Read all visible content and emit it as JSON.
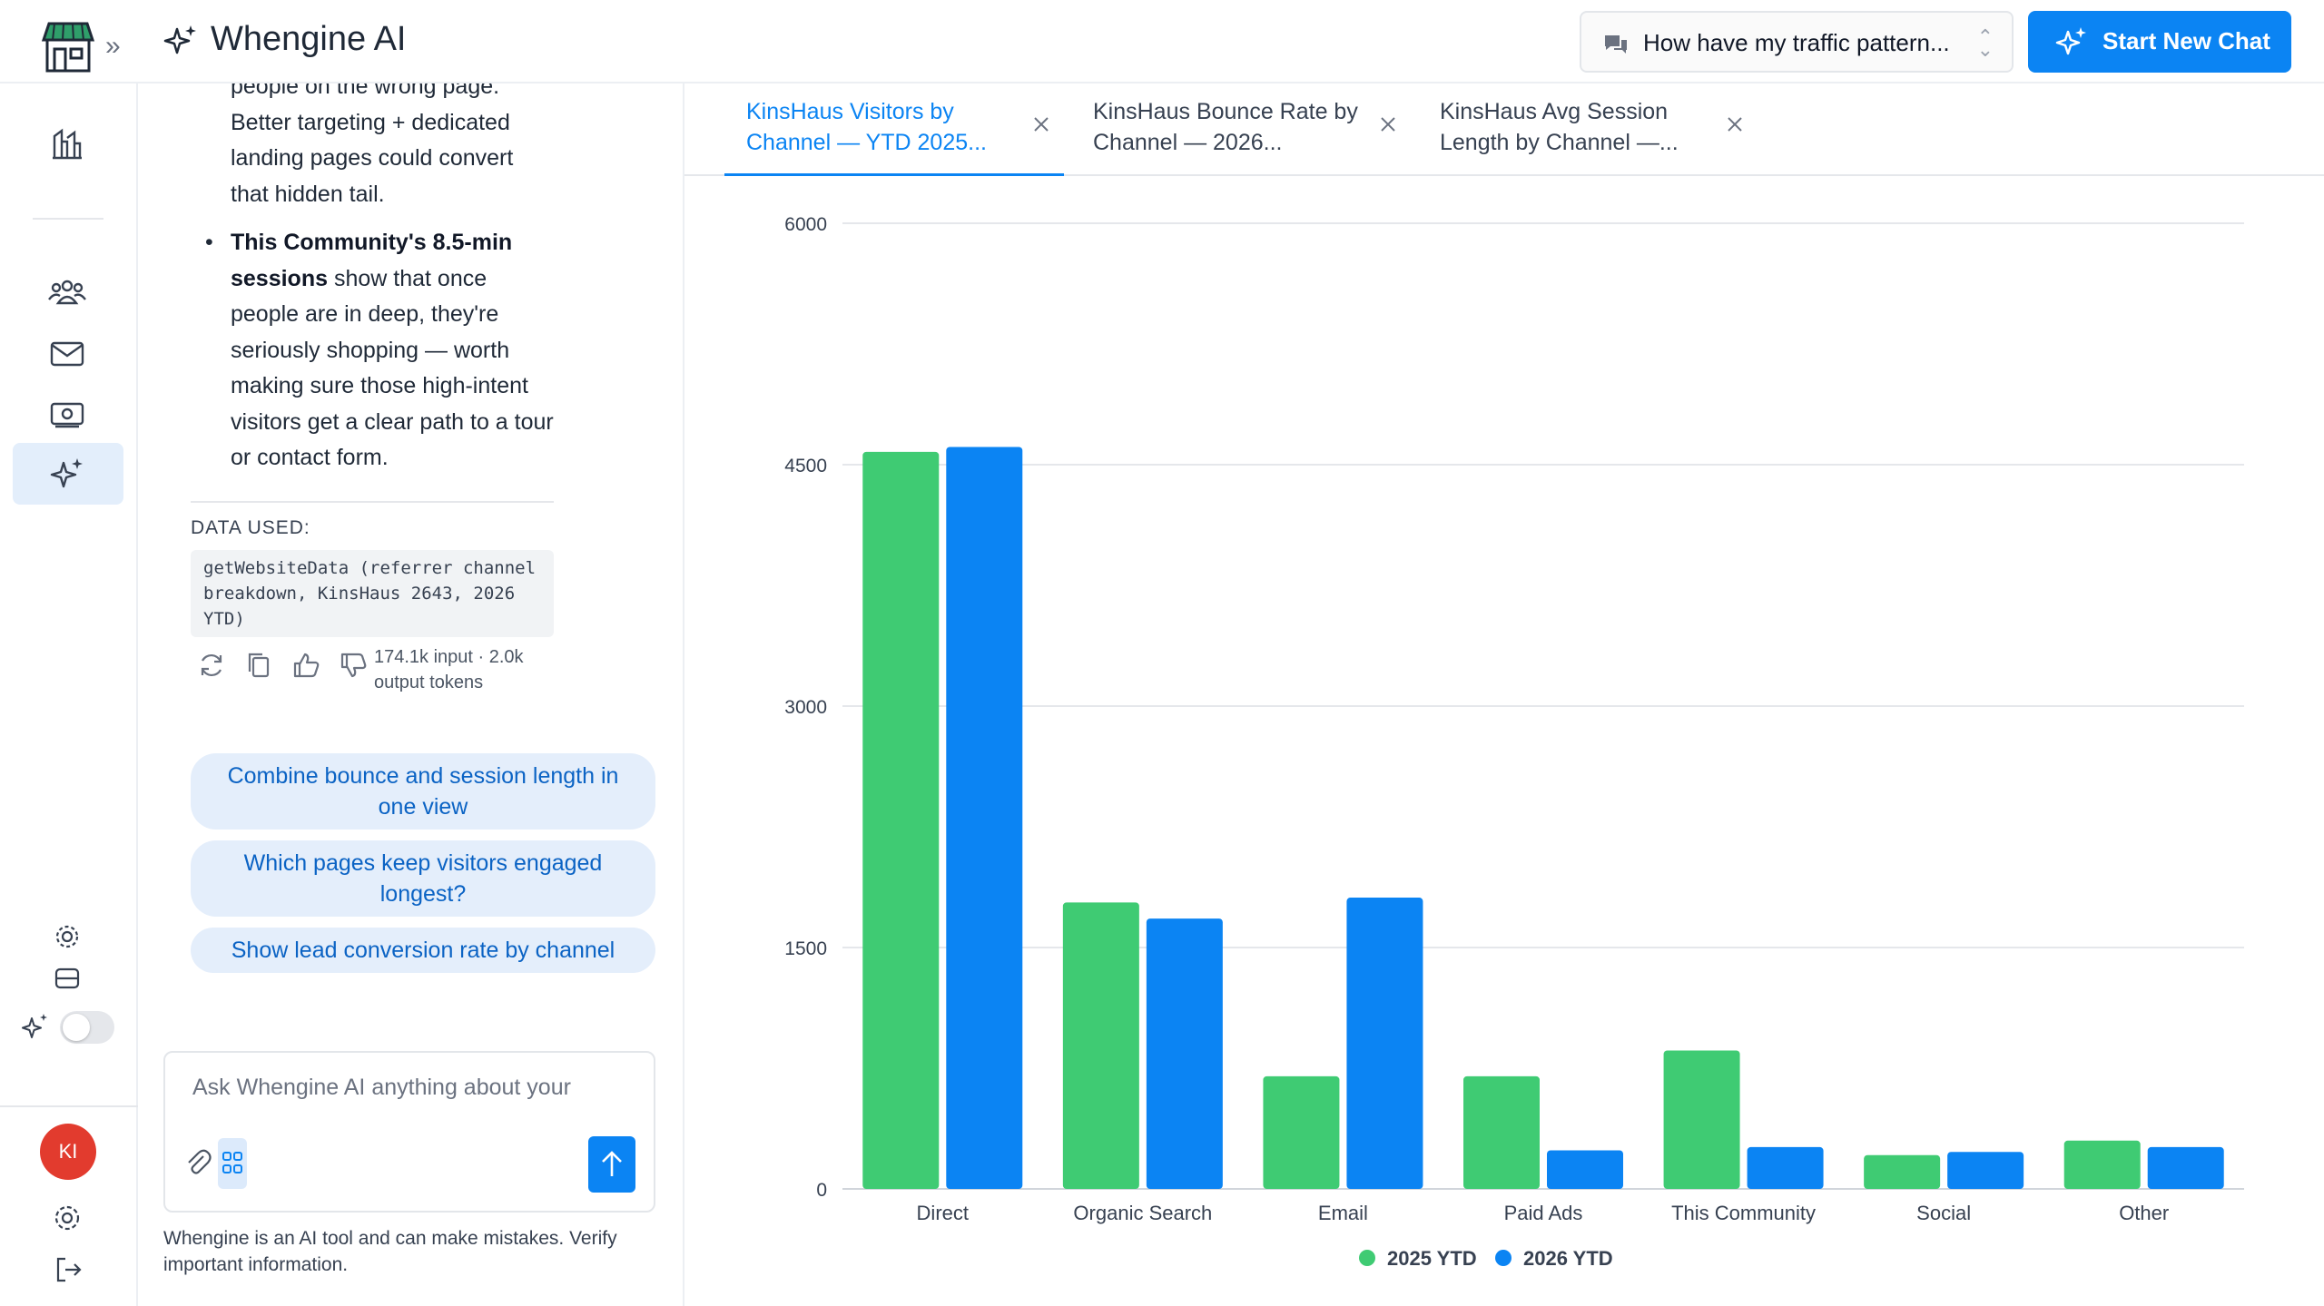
{
  "header": {
    "app_title": "Whengine AI",
    "conversation_select": "How have my traffic pattern...",
    "new_chat_label": "Start New Chat"
  },
  "colors": {
    "accent": "#0b84f3",
    "series_2025": "#3fcb73",
    "series_2026": "#0b84f3",
    "avatar": "#e23b2e"
  },
  "rail": {
    "avatar_initials": "KI",
    "icons": [
      "storefront-logo-icon",
      "expand-icon",
      "analytics-icon",
      "users-icon",
      "mail-icon",
      "money-icon",
      "ai-sparkle-icon",
      "settings-icon",
      "database-icon",
      "ai-toggle-icon",
      "settings-icon",
      "logout-icon"
    ]
  },
  "chat": {
    "msg_line_top": "people on the wrong page.",
    "msg_para": "Better targeting + dedicated landing pages could convert that hidden tail.",
    "bullet_bold": "This Community's 8.5-min sessions",
    "bullet_rest": " show that once people are in deep, they're seriously shopping — worth making sure those high-intent visitors get a clear path to a tour or contact form.",
    "data_used_heading": "DATA USED:",
    "data_used_text": "getWebsiteData (referrer channel breakdown, KinsHaus 2643, 2026 YTD)",
    "tokens": "174.1k input · 2.0k output tokens",
    "suggestions": [
      "Combine bounce and session length in one view",
      "Which pages keep visitors engaged longest?",
      "Show lead conversion rate by channel"
    ],
    "composer_placeholder": "Ask Whengine AI anything about your",
    "disclaimer": "Whengine is an AI tool and can make mistakes. Verify important information."
  },
  "tabs": [
    {
      "label": "KinsHaus Visitors by Channel — YTD 2025...",
      "active": true
    },
    {
      "label": "KinsHaus Bounce Rate by Channel — 2026...",
      "active": false
    },
    {
      "label": "KinsHaus Avg Session Length by Channel —...",
      "active": false
    }
  ],
  "chart_data": {
    "type": "bar",
    "title": "",
    "xlabel": "",
    "ylabel": "",
    "categories": [
      "Direct",
      "Organic Search",
      "Email",
      "Paid Ads",
      "This Community",
      "Social",
      "Other"
    ],
    "series": [
      {
        "name": "2025 YTD",
        "values": [
          4580,
          1780,
          700,
          700,
          860,
          210,
          300
        ]
      },
      {
        "name": "2026 YTD",
        "values": [
          4610,
          1680,
          1810,
          240,
          260,
          230,
          260
        ]
      }
    ],
    "ylim": [
      0,
      6000
    ],
    "yticks": [
      0,
      1500,
      3000,
      4500,
      6000
    ],
    "grid": true,
    "legend": "bottom-center"
  }
}
